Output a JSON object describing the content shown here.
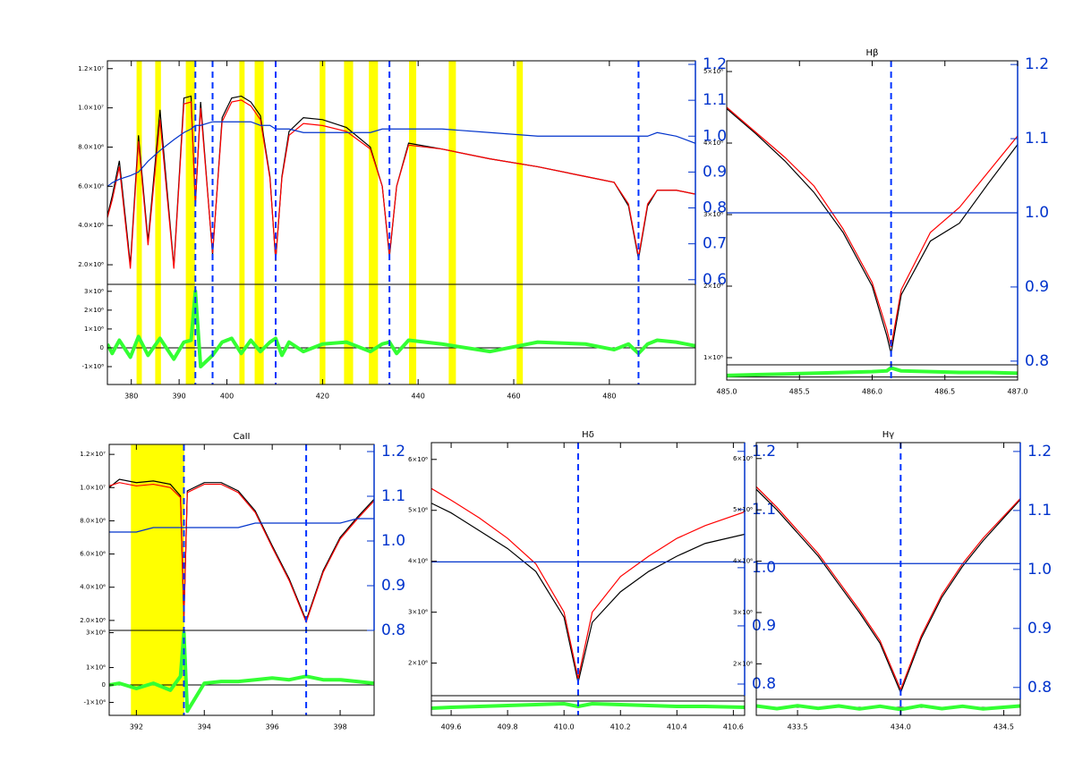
{
  "chart_data": [
    {
      "type": "line",
      "x": [
        375,
        376,
        377.5,
        379.8,
        381.5,
        383.5,
        386,
        388.9,
        391,
        392.5,
        393.4,
        394.5,
        397,
        399,
        401,
        403,
        405,
        407,
        409,
        410.2,
        411.5,
        413,
        416,
        420,
        425,
        430,
        432.5,
        434,
        435.5,
        438,
        445,
        455,
        465,
        475,
        481,
        484,
        486.1,
        488,
        490,
        494,
        498
      ],
      "xlim": [
        375,
        498
      ],
      "xticks": [
        380,
        390,
        400,
        420,
        440,
        460,
        480
      ],
      "ylim": [
        1000000,
        12400000
      ],
      "yticks": [
        {
          "value": 2000000,
          "label": "2.0×10⁶"
        },
        {
          "value": 4000000,
          "label": "4.0×10⁶"
        },
        {
          "value": 6000000,
          "label": "6.0×10⁶"
        },
        {
          "value": 8000000,
          "label": "8.0×10⁶"
        },
        {
          "value": 10000000,
          "label": "1.0×10⁷"
        },
        {
          "value": 12000000,
          "label": "1.2×10⁷"
        }
      ],
      "y2lim": [
        0.587,
        1.21
      ],
      "y2ticks": [
        0.6,
        0.7,
        0.8,
        0.9,
        {
          "value": 1,
          "label": "1.0"
        },
        1.1,
        1.2
      ],
      "bands": [
        [
          381.1,
          382.2
        ],
        [
          385.0,
          386.2
        ],
        [
          391.4,
          393.3
        ],
        [
          402.6,
          403.7
        ],
        [
          405.8,
          407.7
        ],
        [
          419.4,
          420.6
        ],
        [
          424.5,
          426.4
        ],
        [
          429.7,
          431.6
        ],
        [
          438.1,
          439.6
        ],
        [
          446.4,
          447.9
        ],
        [
          460.6,
          461.9
        ]
      ],
      "band_color": "#ffff00",
      "markers": [
        393.4,
        397,
        410.2,
        434,
        486.1
      ],
      "marker_color": "#0033ff",
      "series": [
        {
          "color": "#000000",
          "values": [
            4500000,
            5500000,
            7300000,
            2000000,
            8600000,
            3200000,
            9900000,
            1900000,
            10500000,
            10600000,
            5000000,
            10300000,
            2500000,
            9500000,
            10500000,
            10600000,
            10300000,
            9600000,
            6500000,
            2200000,
            6500000,
            8800000,
            9500000,
            9400000,
            9000000,
            8000000,
            6000000,
            2400000,
            6000000,
            8200000,
            7900000,
            7400000,
            7000000,
            6500000,
            6200000,
            5000000,
            2300000,
            5000000,
            5800000,
            5800000,
            5600000
          ]
        },
        {
          "color": "#ff0000",
          "values": [
            4400000,
            5300000,
            7000000,
            1800000,
            8300000,
            3000000,
            9400000,
            1800000,
            10200000,
            10300000,
            5200000,
            10000000,
            2600000,
            9300000,
            10300000,
            10400000,
            10100000,
            9400000,
            6400000,
            2300000,
            6400000,
            8600000,
            9200000,
            9100000,
            8800000,
            7900000,
            6000000,
            2500000,
            6000000,
            8100000,
            7900000,
            7400000,
            7000000,
            6500000,
            6200000,
            5100000,
            2400000,
            5100000,
            5800000,
            5800000,
            5600000
          ]
        },
        {
          "color": "#0033cc",
          "axis": "y2",
          "values": [
            0.86,
            0.87,
            0.88,
            0.89,
            0.9,
            0.93,
            0.96,
            0.99,
            1.01,
            1.02,
            1.03,
            1.03,
            1.04,
            1.04,
            1.04,
            1.04,
            1.04,
            1.03,
            1.03,
            1.02,
            1.02,
            1.02,
            1.01,
            1.01,
            1.01,
            1.01,
            1.02,
            1.02,
            1.02,
            1.02,
            1.02,
            1.01,
            1.0,
            1.0,
            1.0,
            1.0,
            1.0,
            1.0,
            1.01,
            1.0,
            0.98
          ]
        }
      ],
      "residual": {
        "color": "#33ff33",
        "ylim": [
          -1950000,
          3370000
        ],
        "yticks": [
          {
            "value": 3000000,
            "label": "3×10⁶"
          },
          {
            "value": 2000000,
            "label": "2×10⁶"
          },
          {
            "value": 1000000,
            "label": "1×10⁶"
          },
          0,
          {
            "value": -1000000,
            "label": "-1×10⁶"
          }
        ],
        "values": [
          200000,
          -300000,
          400000,
          -500000,
          600000,
          -400000,
          500000,
          -600000,
          300000,
          400000,
          3000000,
          -1000000,
          -400000,
          300000,
          500000,
          -300000,
          400000,
          -200000,
          300000,
          500000,
          -400000,
          300000,
          -200000,
          200000,
          300000,
          -200000,
          200000,
          300000,
          -300000,
          400000,
          200000,
          -200000,
          300000,
          200000,
          -100000,
          200000,
          -300000,
          200000,
          400000,
          300000,
          100000
        ]
      }
    },
    {
      "type": "line",
      "title": "Hβ",
      "x": [
        485,
        485.2,
        485.4,
        485.6,
        485.8,
        486,
        486.1,
        486.13,
        486.2,
        486.4,
        486.6,
        486.8,
        487
      ],
      "xlim": [
        485,
        487
      ],
      "xticks": [
        {
          "value": 485,
          "label": "485.0"
        },
        485.5,
        {
          "value": 486,
          "label": "486.0"
        },
        486.5,
        {
          "value": 487,
          "label": "487.0"
        }
      ],
      "ylim": [
        900000,
        5150000
      ],
      "yticks": [
        {
          "value": 1000000,
          "label": "1×10⁶"
        },
        {
          "value": 2000000,
          "label": "2×10⁶"
        },
        {
          "value": 3000000,
          "label": "3×10⁶"
        },
        {
          "value": 4000000,
          "label": "4×10⁶"
        },
        {
          "value": 5000000,
          "label": "5×10⁶"
        }
      ],
      "y2lim": [
        0.795,
        1.205
      ],
      "y2ticks": [
        0.8,
        0.9,
        {
          "value": 1,
          "label": "1.0"
        },
        1.1,
        1.2
      ],
      "markers": [
        486.13
      ],
      "marker_color": "#0033ff",
      "series": [
        {
          "color": "#000000",
          "values": [
            4480000,
            4130000,
            3750000,
            3310000,
            2750000,
            2000000,
            1310000,
            1060000,
            1880000,
            2630000,
            2880000,
            3440000,
            3980000
          ]
        },
        {
          "color": "#ff0000",
          "values": [
            4500000,
            4150000,
            3800000,
            3400000,
            2800000,
            2050000,
            1400000,
            1150000,
            1950000,
            2750000,
            3100000,
            3600000,
            4100000
          ]
        },
        {
          "color": "#0033cc",
          "axis": "y2",
          "values": [
            1,
            1,
            1,
            1,
            1,
            1,
            1,
            1,
            1,
            1,
            1,
            1,
            1
          ]
        }
      ],
      "residual": {
        "color": "#33ff33",
        "ylim": [
          -200000,
          800000
        ],
        "values": [
          100000,
          150000,
          200000,
          250000,
          300000,
          350000,
          400000,
          600000,
          400000,
          350000,
          300000,
          300000,
          250000
        ]
      }
    },
    {
      "type": "line",
      "title": "CaII",
      "x": [
        391.2,
        391.5,
        392,
        392.5,
        393,
        393.3,
        393.4,
        393.5,
        394,
        394.5,
        395,
        395.5,
        396,
        396.5,
        397,
        397.5,
        398,
        398.5,
        399
      ],
      "xlim": [
        391.2,
        399
      ],
      "xticks": [
        392,
        394,
        396,
        398
      ],
      "ylim": [
        1400000,
        12600000
      ],
      "yticks": [
        {
          "value": 2000000,
          "label": "2.0×10⁶"
        },
        {
          "value": 4000000,
          "label": "4.0×10⁶"
        },
        {
          "value": 6000000,
          "label": "6.0×10⁶"
        },
        {
          "value": 8000000,
          "label": "8.0×10⁶"
        },
        {
          "value": 10000000,
          "label": "1.0×10⁷"
        },
        {
          "value": 12000000,
          "label": "1.2×10⁷"
        }
      ],
      "y2lim": [
        0.8,
        1.216
      ],
      "y2ticks": [
        0.8,
        0.9,
        {
          "value": 1,
          "label": "1.0"
        },
        1.1,
        1.2
      ],
      "bands": [
        [
          391.84,
          393.41
        ]
      ],
      "band_color": "#ffff00",
      "markers": [
        393.4,
        397
      ],
      "marker_color": "#0033ff",
      "series": [
        {
          "color": "#000000",
          "values": [
            10000000,
            10500000,
            10300000,
            10400000,
            10200000,
            9500000,
            2000000,
            9800000,
            10300000,
            10300000,
            9800000,
            8600000,
            6500000,
            4500000,
            2000000,
            5000000,
            7000000,
            8200000,
            9300000
          ]
        },
        {
          "color": "#ff0000",
          "values": [
            10100000,
            10300000,
            10100000,
            10200000,
            10000000,
            9400000,
            2200000,
            9700000,
            10200000,
            10200000,
            9700000,
            8500000,
            6400000,
            4400000,
            1900000,
            4900000,
            6900000,
            8100000,
            9200000
          ]
        },
        {
          "color": "#0033cc",
          "axis": "y2",
          "values": [
            1.02,
            1.02,
            1.02,
            1.03,
            1.03,
            1.03,
            1.03,
            1.03,
            1.03,
            1.03,
            1.03,
            1.04,
            1.04,
            1.04,
            1.04,
            1.04,
            1.04,
            1.05,
            1.05
          ]
        }
      ],
      "residual": {
        "color": "#33ff33",
        "ylim": [
          -1740000,
          3130000
        ],
        "yticks": [
          {
            "value": 3000000,
            "label": "3×10⁶"
          },
          {
            "value": 1000000,
            "label": "1×10⁶"
          },
          0,
          {
            "value": -1000000,
            "label": "-1×10⁶"
          }
        ],
        "values": [
          0,
          100000,
          -200000,
          100000,
          -300000,
          500000,
          3000000,
          -1500000,
          100000,
          200000,
          200000,
          300000,
          400000,
          300000,
          500000,
          300000,
          300000,
          200000,
          100000
        ]
      }
    },
    {
      "type": "line",
      "title": "Hδ",
      "x": [
        409.53,
        409.6,
        409.7,
        409.8,
        409.9,
        410,
        410.05,
        410.1,
        410.2,
        410.3,
        410.4,
        410.5,
        410.64
      ],
      "xlim": [
        409.53,
        410.64
      ],
      "xticks": [
        409.6,
        409.8,
        {
          "value": 410,
          "label": "410.0"
        },
        410.2,
        410.4,
        410.6
      ],
      "ylim": [
        1360000,
        6330000
      ],
      "yticks": [
        {
          "value": 2000000,
          "label": "2×10⁶"
        },
        {
          "value": 3000000,
          "label": "3×10⁶"
        },
        {
          "value": 4000000,
          "label": "4×10⁶"
        },
        {
          "value": 5000000,
          "label": "5×10⁶"
        },
        {
          "value": 6000000,
          "label": "6×10⁶"
        }
      ],
      "y2lim": [
        0.78,
        1.215
      ],
      "y2ticks": [
        0.8,
        0.9,
        {
          "value": 1,
          "label": "1.0"
        },
        1.1,
        1.2
      ],
      "markers": [
        410.05
      ],
      "marker_color": "#0033ff",
      "series": [
        {
          "color": "#000000",
          "values": [
            5140000,
            4950000,
            4600000,
            4250000,
            3800000,
            2900000,
            1620000,
            2800000,
            3400000,
            3800000,
            4100000,
            4350000,
            4530000
          ]
        },
        {
          "color": "#ff0000",
          "values": [
            5430000,
            5200000,
            4850000,
            4450000,
            3950000,
            3000000,
            1700000,
            3000000,
            3700000,
            4100000,
            4450000,
            4700000,
            4970000
          ]
        },
        {
          "color": "#0033cc",
          "axis": "y2",
          "values": [
            1.01,
            1.01,
            1.01,
            1.01,
            1.01,
            1.01,
            1.01,
            1.01,
            1.01,
            1.01,
            1.01,
            1.01,
            1.01
          ]
        }
      ],
      "residual": {
        "color": "#33ff33",
        "ylim": [
          -800000,
          300000
        ],
        "values": [
          -400000,
          -350000,
          -300000,
          -250000,
          -200000,
          -150000,
          -300000,
          -150000,
          -200000,
          -250000,
          -300000,
          -300000,
          -350000
        ]
      }
    },
    {
      "type": "line",
      "title": "Hγ",
      "x": [
        433.3,
        433.4,
        433.5,
        433.6,
        433.7,
        433.8,
        433.9,
        434,
        434.1,
        434.2,
        434.3,
        434.4,
        434.58
      ],
      "xlim": [
        433.3,
        434.58
      ],
      "xticks": [
        433.5,
        {
          "value": 434,
          "label": "434.0"
        },
        434.5
      ],
      "ylim": [
        1310000,
        6310000
      ],
      "yticks": [
        {
          "value": 2000000,
          "label": "2×10⁶"
        },
        {
          "value": 3000000,
          "label": "3×10⁶"
        },
        {
          "value": 4000000,
          "label": "4×10⁶"
        },
        {
          "value": 5000000,
          "label": "5×10⁶"
        },
        {
          "value": 6000000,
          "label": "6×10⁶"
        }
      ],
      "y2lim": [
        0.78,
        1.215
      ],
      "y2ticks": [
        0.8,
        0.9,
        {
          "value": 1,
          "label": "1.0"
        },
        1.1,
        1.2
      ],
      "markers": [
        434
      ],
      "marker_color": "#0033ff",
      "series": [
        {
          "color": "#000000",
          "values": [
            5400000,
            5000000,
            4550000,
            4100000,
            3550000,
            3000000,
            2400000,
            1440000,
            2500000,
            3300000,
            3900000,
            4400000,
            5200000
          ]
        },
        {
          "color": "#ff0000",
          "values": [
            5450000,
            5050000,
            4600000,
            4150000,
            3600000,
            3050000,
            2450000,
            1500000,
            2550000,
            3350000,
            3950000,
            4450000,
            5220000
          ]
        },
        {
          "color": "#0033cc",
          "axis": "y2",
          "values": [
            1.01,
            1.01,
            1.01,
            1.01,
            1.01,
            1.01,
            1.01,
            1.01,
            1.01,
            1.01,
            1.01,
            1.01,
            1.01
          ]
        }
      ],
      "residual": {
        "color": "#33ff33",
        "ylim": [
          -300000,
          300000
        ],
        "values": [
          50000,
          -50000,
          60000,
          -40000,
          50000,
          -60000,
          40000,
          -80000,
          60000,
          -50000,
          40000,
          -60000,
          50000
        ]
      }
    }
  ]
}
